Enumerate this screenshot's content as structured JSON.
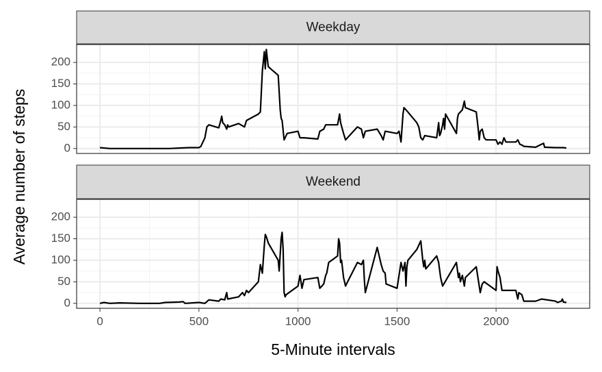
{
  "chart_data": {
    "type": "line",
    "x_label": "5-Minute intervals",
    "y_label": "Average number of steps",
    "xlim": [
      -117.75,
      2472.75
    ],
    "xticks": [
      0,
      500,
      1000,
      1500,
      2000
    ],
    "ylim": [
      -11.5,
      241.5
    ],
    "yticks": [
      0,
      50,
      100,
      150,
      200
    ],
    "grid": true,
    "color": "#000000",
    "series": [
      {
        "name": "Weekday",
        "x": [
          0,
          50,
          100,
          200,
          300,
          350,
          400,
          450,
          500,
          510,
          520,
          530,
          540,
          550,
          600,
          610,
          615,
          620,
          630,
          640,
          645,
          650,
          700,
          730,
          740,
          800,
          810,
          820,
          830,
          835,
          840,
          845,
          850,
          900,
          910,
          915,
          920,
          930,
          945,
          1000,
          1010,
          1030,
          1100,
          1110,
          1130,
          1140,
          1200,
          1210,
          1215,
          1230,
          1240,
          1300,
          1320,
          1330,
          1340,
          1400,
          1420,
          1430,
          1440,
          1500,
          1510,
          1520,
          1530,
          1535,
          1545,
          1600,
          1610,
          1620,
          1630,
          1640,
          1700,
          1710,
          1715,
          1720,
          1730,
          1735,
          1740,
          1745,
          1800,
          1805,
          1810,
          1830,
          1840,
          1845,
          1900,
          1910,
          1915,
          1920,
          1930,
          1940,
          1950,
          2000,
          2010,
          2020,
          2030,
          2040,
          2050,
          2100,
          2110,
          2120,
          2130,
          2140,
          2200,
          2230,
          2240,
          2245,
          2300,
          2330,
          2340,
          2355
        ],
        "values": [
          2,
          0,
          0,
          0,
          0,
          0,
          1,
          2,
          2,
          5,
          15,
          25,
          50,
          55,
          48,
          65,
          75,
          60,
          55,
          45,
          55,
          50,
          58,
          50,
          65,
          80,
          85,
          180,
          225,
          185,
          230,
          210,
          190,
          170,
          90,
          70,
          65,
          20,
          35,
          40,
          25,
          25,
          22,
          40,
          45,
          55,
          55,
          80,
          60,
          35,
          20,
          50,
          45,
          25,
          40,
          45,
          30,
          20,
          40,
          35,
          40,
          15,
          80,
          95,
          90,
          60,
          50,
          25,
          20,
          30,
          25,
          60,
          30,
          35,
          55,
          70,
          45,
          80,
          35,
          70,
          80,
          90,
          110,
          95,
          85,
          45,
          20,
          40,
          45,
          25,
          20,
          20,
          10,
          15,
          10,
          25,
          15,
          15,
          20,
          10,
          8,
          5,
          3,
          10,
          12,
          3,
          2,
          2,
          2,
          1
        ]
      },
      {
        "name": "Weekend",
        "x": [
          0,
          20,
          50,
          100,
          200,
          300,
          330,
          400,
          420,
          430,
          500,
          530,
          550,
          600,
          610,
          630,
          640,
          645,
          700,
          720,
          730,
          740,
          750,
          800,
          810,
          820,
          830,
          835,
          840,
          850,
          900,
          905,
          915,
          920,
          925,
          930,
          935,
          940,
          1000,
          1010,
          1015,
          1020,
          1030,
          1100,
          1110,
          1120,
          1130,
          1140,
          1145,
          1155,
          1200,
          1205,
          1210,
          1215,
          1220,
          1230,
          1240,
          1245,
          1300,
          1320,
          1330,
          1335,
          1340,
          1400,
          1420,
          1430,
          1440,
          1445,
          1500,
          1510,
          1520,
          1530,
          1540,
          1545,
          1550,
          1555,
          1600,
          1620,
          1630,
          1635,
          1640,
          1645,
          1700,
          1710,
          1720,
          1730,
          1800,
          1810,
          1815,
          1820,
          1830,
          1840,
          1845,
          1900,
          1910,
          1920,
          1930,
          1940,
          2000,
          2005,
          2010,
          2020,
          2030,
          2100,
          2105,
          2110,
          2115,
          2130,
          2140,
          2200,
          2230,
          2300,
          2310,
          2330,
          2335,
          2340,
          2355
        ],
        "values": [
          0,
          2,
          0,
          1,
          0,
          0,
          2,
          3,
          4,
          0,
          2,
          0,
          8,
          5,
          10,
          8,
          25,
          10,
          15,
          25,
          18,
          30,
          25,
          50,
          90,
          70,
          135,
          160,
          155,
          140,
          100,
          75,
          150,
          165,
          125,
          25,
          15,
          20,
          40,
          65,
          50,
          35,
          55,
          60,
          35,
          40,
          45,
          65,
          70,
          95,
          110,
          150,
          140,
          95,
          100,
          60,
          40,
          45,
          95,
          90,
          100,
          55,
          25,
          130,
          90,
          75,
          70,
          45,
          35,
          65,
          95,
          75,
          95,
          40,
          85,
          100,
          125,
          145,
          100,
          85,
          100,
          80,
          110,
          95,
          60,
          40,
          95,
          60,
          70,
          50,
          65,
          40,
          60,
          85,
          55,
          25,
          45,
          50,
          30,
          85,
          75,
          60,
          30,
          30,
          20,
          10,
          25,
          20,
          5,
          5,
          10,
          5,
          2,
          5,
          10,
          3,
          2
        ]
      }
    ]
  }
}
